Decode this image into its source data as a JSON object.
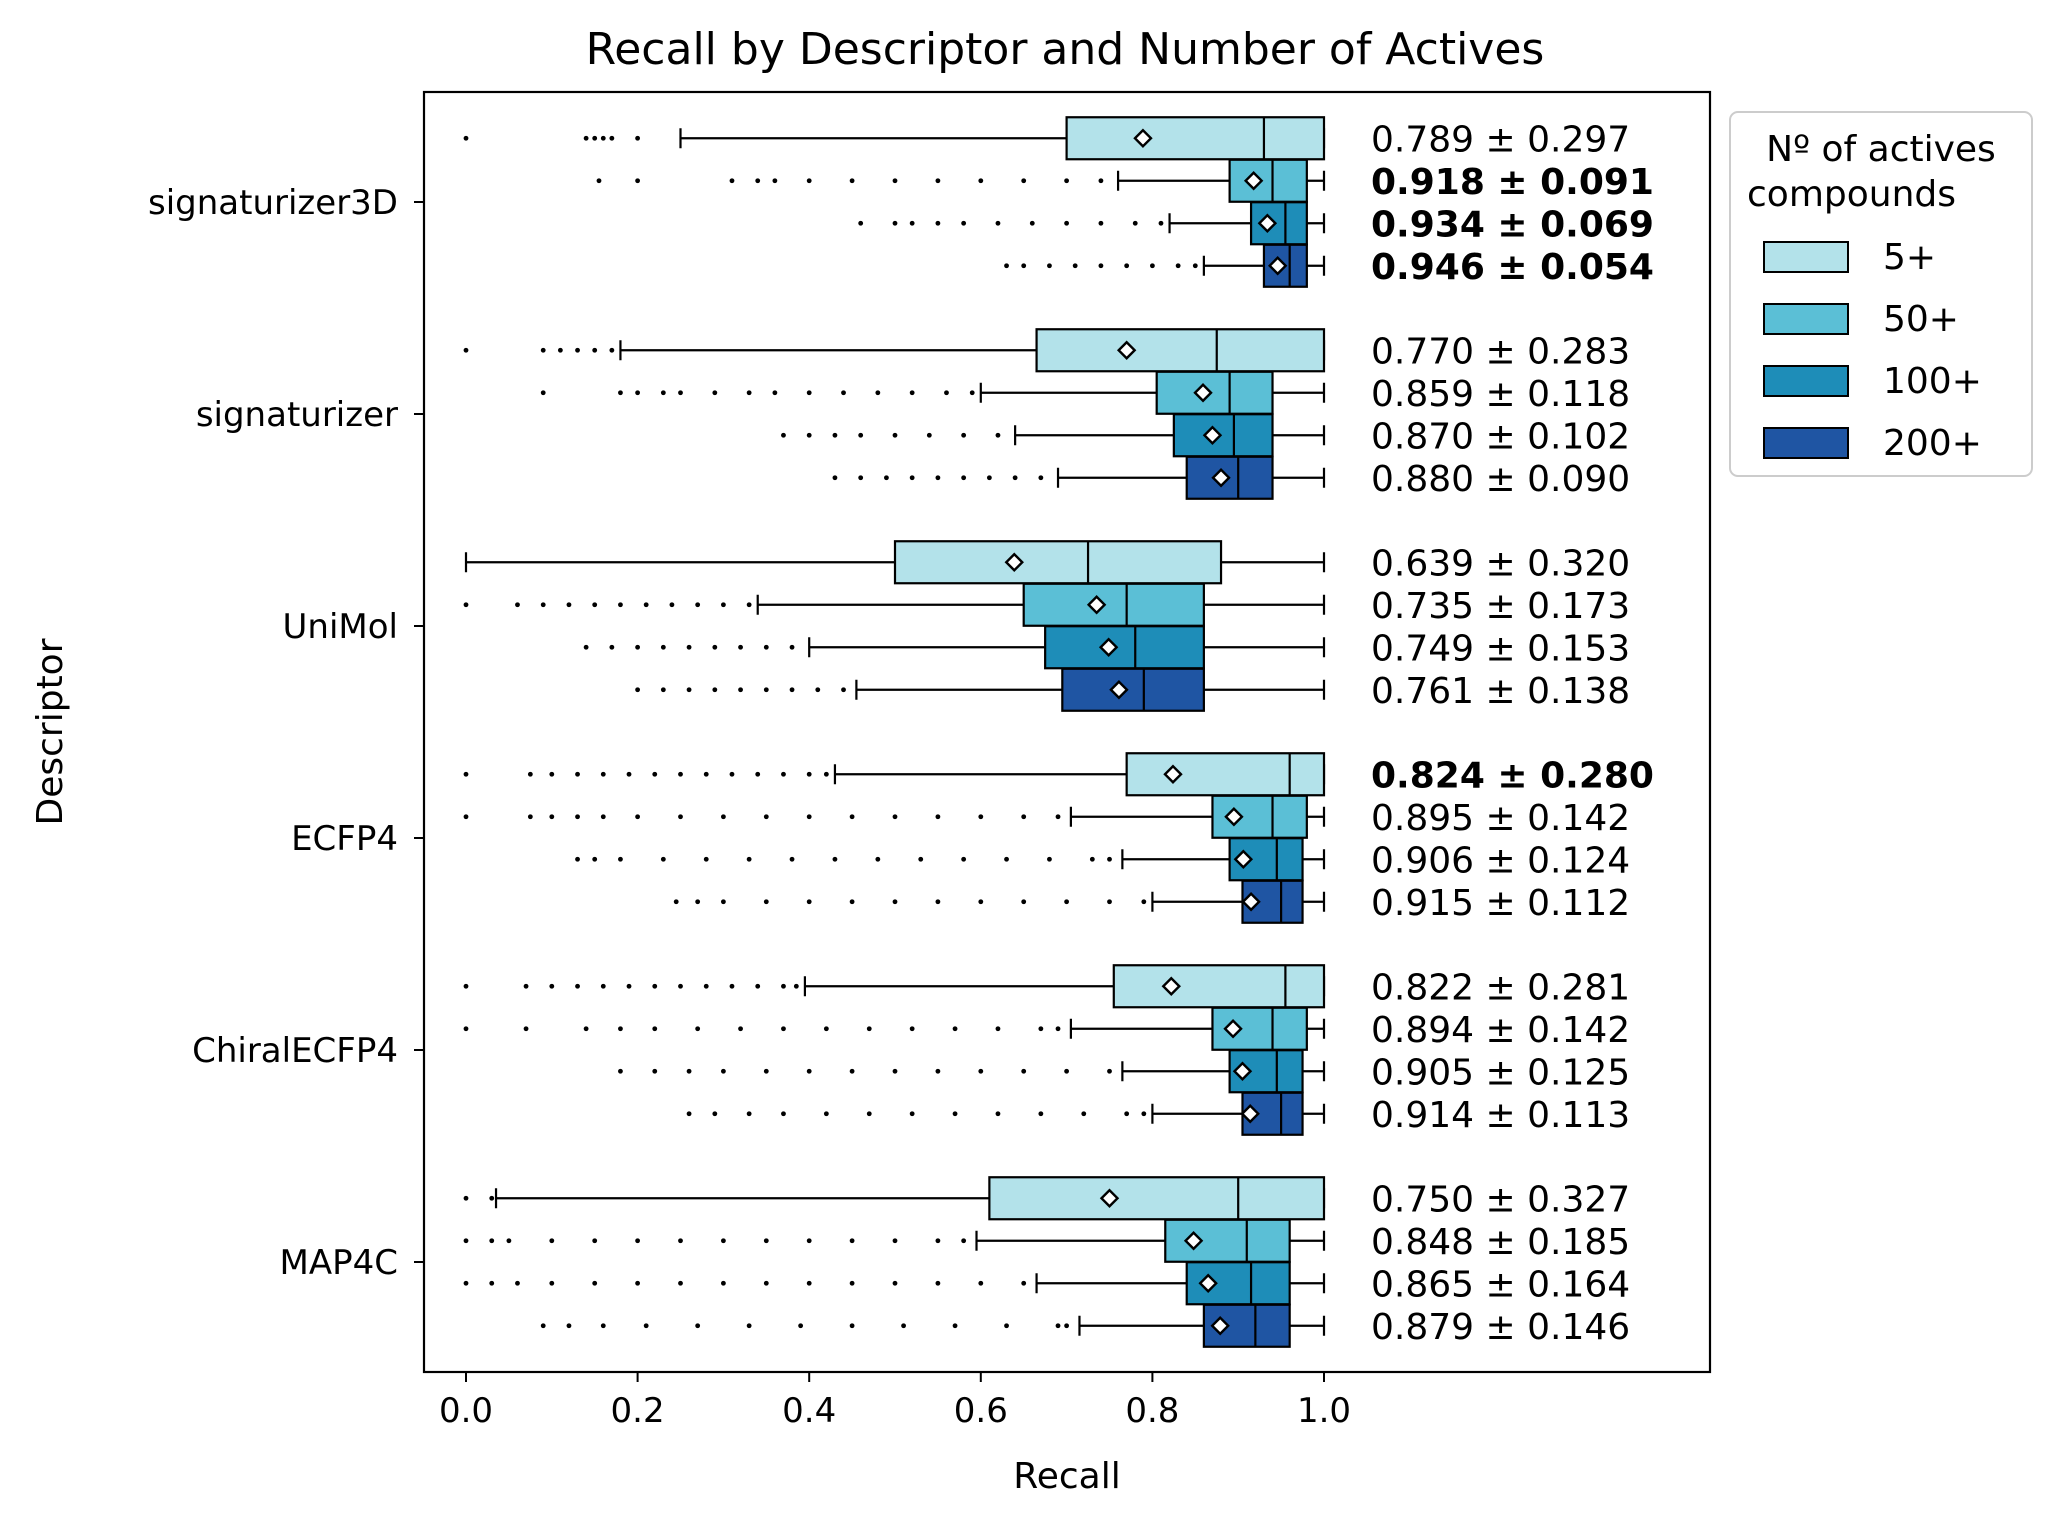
{
  "chart_data": {
    "type": "boxplot",
    "title": "Recall by Descriptor and Number of Actives",
    "xlabel": "Recall",
    "ylabel": "Descriptor",
    "xlim": [
      -0.05,
      1.45
    ],
    "xticks": [
      "0.0",
      "0.2",
      "0.4",
      "0.6",
      "0.8",
      "1.0"
    ],
    "xtick_values": [
      0.0,
      0.2,
      0.4,
      0.6,
      0.8,
      1.0
    ],
    "grid": false,
    "legend": {
      "title_lines": [
        "Nº of actives",
        "compounds"
      ],
      "placement": "outside-top-right",
      "entries": [
        "5+",
        "50+",
        "100+",
        "200+"
      ]
    },
    "hue_colors": [
      "#b3e2ea",
      "#5bbfd6",
      "#1e8db8",
      "#1f55a3"
    ],
    "categories": [
      "signaturizer3D",
      "signaturizer",
      "UniMol",
      "ECFP4",
      "ChiralECFP4",
      "MAP4C"
    ],
    "series": [
      {
        "descriptor": "signaturizer3D",
        "boxes": [
          {
            "hue": "5+",
            "whisker_low": 0.25,
            "q1": 0.7,
            "median": 0.93,
            "q3": 1.0,
            "whisker_high": 1.0,
            "mean": 0.789,
            "fliers": [
              0.0,
              0.14,
              0.15,
              0.16,
              0.17,
              0.2
            ],
            "annotation": "0.789 ± 0.297",
            "bold": false
          },
          {
            "hue": "50+",
            "whisker_low": 0.76,
            "q1": 0.89,
            "median": 0.94,
            "q3": 0.98,
            "whisker_high": 1.0,
            "mean": 0.918,
            "fliers": [
              0.155,
              0.2,
              0.31,
              0.34,
              0.36,
              0.4,
              0.45,
              0.5,
              0.55,
              0.6,
              0.65,
              0.7,
              0.74
            ],
            "annotation": "0.918 ± 0.091",
            "bold": true
          },
          {
            "hue": "100+",
            "whisker_low": 0.82,
            "q1": 0.915,
            "median": 0.955,
            "q3": 0.98,
            "whisker_high": 1.0,
            "mean": 0.934,
            "fliers": [
              0.46,
              0.5,
              0.52,
              0.55,
              0.58,
              0.62,
              0.66,
              0.7,
              0.74,
              0.78,
              0.81
            ],
            "annotation": "0.934 ± 0.069",
            "bold": true
          },
          {
            "hue": "200+",
            "whisker_low": 0.86,
            "q1": 0.93,
            "median": 0.96,
            "q3": 0.98,
            "whisker_high": 1.0,
            "mean": 0.946,
            "fliers": [
              0.63,
              0.65,
              0.68,
              0.71,
              0.74,
              0.77,
              0.8,
              0.83,
              0.85
            ],
            "annotation": "0.946 ± 0.054",
            "bold": true
          }
        ]
      },
      {
        "descriptor": "signaturizer",
        "boxes": [
          {
            "hue": "5+",
            "whisker_low": 0.18,
            "q1": 0.665,
            "median": 0.875,
            "q3": 1.0,
            "whisker_high": 1.0,
            "mean": 0.77,
            "fliers": [
              0.0,
              0.09,
              0.11,
              0.13,
              0.15,
              0.17
            ],
            "annotation": "0.770 ± 0.283",
            "bold": false
          },
          {
            "hue": "50+",
            "whisker_low": 0.6,
            "q1": 0.805,
            "median": 0.89,
            "q3": 0.94,
            "whisker_high": 1.0,
            "mean": 0.859,
            "fliers": [
              0.09,
              0.18,
              0.2,
              0.23,
              0.25,
              0.29,
              0.33,
              0.36,
              0.4,
              0.44,
              0.48,
              0.52,
              0.56,
              0.59
            ],
            "annotation": "0.859 ± 0.118",
            "bold": false
          },
          {
            "hue": "100+",
            "whisker_low": 0.64,
            "q1": 0.825,
            "median": 0.895,
            "q3": 0.94,
            "whisker_high": 1.0,
            "mean": 0.87,
            "fliers": [
              0.37,
              0.4,
              0.43,
              0.46,
              0.5,
              0.54,
              0.58,
              0.62
            ],
            "annotation": "0.870 ± 0.102",
            "bold": false
          },
          {
            "hue": "200+",
            "whisker_low": 0.69,
            "q1": 0.84,
            "median": 0.9,
            "q3": 0.94,
            "whisker_high": 1.0,
            "mean": 0.88,
            "fliers": [
              0.43,
              0.46,
              0.49,
              0.52,
              0.55,
              0.58,
              0.61,
              0.64,
              0.67
            ],
            "annotation": "0.880 ± 0.090",
            "bold": false
          }
        ]
      },
      {
        "descriptor": "UniMol",
        "boxes": [
          {
            "hue": "5+",
            "whisker_low": 0.0,
            "q1": 0.5,
            "median": 0.725,
            "q3": 0.88,
            "whisker_high": 1.0,
            "mean": 0.639,
            "fliers": [],
            "annotation": "0.639 ± 0.320",
            "bold": false
          },
          {
            "hue": "50+",
            "whisker_low": 0.34,
            "q1": 0.65,
            "median": 0.77,
            "q3": 0.86,
            "whisker_high": 1.0,
            "mean": 0.735,
            "fliers": [
              0.0,
              0.06,
              0.09,
              0.12,
              0.15,
              0.18,
              0.21,
              0.24,
              0.27,
              0.3,
              0.33
            ],
            "annotation": "0.735 ± 0.173",
            "bold": false
          },
          {
            "hue": "100+",
            "whisker_low": 0.4,
            "q1": 0.675,
            "median": 0.78,
            "q3": 0.86,
            "whisker_high": 1.0,
            "mean": 0.749,
            "fliers": [
              0.14,
              0.17,
              0.2,
              0.23,
              0.26,
              0.29,
              0.32,
              0.35,
              0.38
            ],
            "annotation": "0.749 ± 0.153",
            "bold": false
          },
          {
            "hue": "200+",
            "whisker_low": 0.455,
            "q1": 0.695,
            "median": 0.79,
            "q3": 0.86,
            "whisker_high": 1.0,
            "mean": 0.761,
            "fliers": [
              0.2,
              0.23,
              0.26,
              0.29,
              0.32,
              0.35,
              0.38,
              0.41,
              0.44
            ],
            "annotation": "0.761 ± 0.138",
            "bold": false
          }
        ]
      },
      {
        "descriptor": "ECFP4",
        "boxes": [
          {
            "hue": "5+",
            "whisker_low": 0.43,
            "q1": 0.77,
            "median": 0.96,
            "q3": 1.0,
            "whisker_high": 1.0,
            "mean": 0.824,
            "fliers": [
              0.0,
              0.075,
              0.1,
              0.13,
              0.16,
              0.19,
              0.22,
              0.25,
              0.28,
              0.31,
              0.34,
              0.37,
              0.4,
              0.42
            ],
            "annotation": "0.824 ± 0.280",
            "bold": true
          },
          {
            "hue": "50+",
            "whisker_low": 0.705,
            "q1": 0.87,
            "median": 0.94,
            "q3": 0.98,
            "whisker_high": 1.0,
            "mean": 0.895,
            "fliers": [
              0.0,
              0.075,
              0.1,
              0.13,
              0.16,
              0.2,
              0.25,
              0.3,
              0.35,
              0.4,
              0.45,
              0.5,
              0.55,
              0.6,
              0.65,
              0.69
            ],
            "annotation": "0.895 ± 0.142",
            "bold": false
          },
          {
            "hue": "100+",
            "whisker_low": 0.765,
            "q1": 0.89,
            "median": 0.945,
            "q3": 0.975,
            "whisker_high": 1.0,
            "mean": 0.906,
            "fliers": [
              0.13,
              0.15,
              0.18,
              0.23,
              0.28,
              0.33,
              0.38,
              0.43,
              0.48,
              0.53,
              0.58,
              0.63,
              0.68,
              0.73,
              0.75
            ],
            "annotation": "0.906 ± 0.124",
            "bold": false
          },
          {
            "hue": "200+",
            "whisker_low": 0.8,
            "q1": 0.905,
            "median": 0.95,
            "q3": 0.975,
            "whisker_high": 1.0,
            "mean": 0.915,
            "fliers": [
              0.245,
              0.27,
              0.3,
              0.35,
              0.4,
              0.45,
              0.5,
              0.55,
              0.6,
              0.65,
              0.7,
              0.75,
              0.79
            ],
            "annotation": "0.915 ± 0.112",
            "bold": false
          }
        ]
      },
      {
        "descriptor": "ChiralECFP4",
        "boxes": [
          {
            "hue": "5+",
            "whisker_low": 0.395,
            "q1": 0.755,
            "median": 0.955,
            "q3": 1.0,
            "whisker_high": 1.0,
            "mean": 0.822,
            "fliers": [
              0.0,
              0.07,
              0.1,
              0.13,
              0.16,
              0.19,
              0.22,
              0.25,
              0.28,
              0.31,
              0.34,
              0.37,
              0.385
            ],
            "annotation": "0.822 ± 0.281",
            "bold": false
          },
          {
            "hue": "50+",
            "whisker_low": 0.705,
            "q1": 0.87,
            "median": 0.94,
            "q3": 0.98,
            "whisker_high": 1.0,
            "mean": 0.894,
            "fliers": [
              0.0,
              0.07,
              0.14,
              0.18,
              0.22,
              0.27,
              0.32,
              0.37,
              0.42,
              0.47,
              0.52,
              0.57,
              0.62,
              0.67,
              0.69
            ],
            "annotation": "0.894 ± 0.142",
            "bold": false
          },
          {
            "hue": "100+",
            "whisker_low": 0.765,
            "q1": 0.89,
            "median": 0.945,
            "q3": 0.975,
            "whisker_high": 1.0,
            "mean": 0.905,
            "fliers": [
              0.18,
              0.22,
              0.26,
              0.3,
              0.35,
              0.4,
              0.45,
              0.5,
              0.55,
              0.6,
              0.65,
              0.7,
              0.75
            ],
            "annotation": "0.905 ± 0.125",
            "bold": false
          },
          {
            "hue": "200+",
            "whisker_low": 0.8,
            "q1": 0.905,
            "median": 0.95,
            "q3": 0.975,
            "whisker_high": 1.0,
            "mean": 0.914,
            "fliers": [
              0.26,
              0.29,
              0.33,
              0.37,
              0.42,
              0.47,
              0.52,
              0.57,
              0.62,
              0.67,
              0.72,
              0.77,
              0.79
            ],
            "annotation": "0.914 ± 0.113",
            "bold": false
          }
        ]
      },
      {
        "descriptor": "MAP4C",
        "boxes": [
          {
            "hue": "5+",
            "whisker_low": 0.035,
            "q1": 0.61,
            "median": 0.9,
            "q3": 1.0,
            "whisker_high": 1.0,
            "mean": 0.75,
            "fliers": [
              0.0,
              0.03
            ],
            "annotation": "0.750 ± 0.327",
            "bold": false
          },
          {
            "hue": "50+",
            "whisker_low": 0.595,
            "q1": 0.815,
            "median": 0.91,
            "q3": 0.96,
            "whisker_high": 1.0,
            "mean": 0.848,
            "fliers": [
              0.0,
              0.03,
              0.05,
              0.1,
              0.15,
              0.2,
              0.25,
              0.3,
              0.35,
              0.4,
              0.45,
              0.5,
              0.55,
              0.58
            ],
            "annotation": "0.848 ± 0.185",
            "bold": false
          },
          {
            "hue": "100+",
            "whisker_low": 0.665,
            "q1": 0.84,
            "median": 0.915,
            "q3": 0.96,
            "whisker_high": 1.0,
            "mean": 0.865,
            "fliers": [
              0.0,
              0.03,
              0.06,
              0.1,
              0.15,
              0.2,
              0.25,
              0.3,
              0.35,
              0.4,
              0.45,
              0.5,
              0.55,
              0.6,
              0.65
            ],
            "annotation": "0.865 ± 0.164",
            "bold": false
          },
          {
            "hue": "200+",
            "whisker_low": 0.715,
            "q1": 0.86,
            "median": 0.92,
            "q3": 0.96,
            "whisker_high": 1.0,
            "mean": 0.879,
            "fliers": [
              0.09,
              0.12,
              0.16,
              0.21,
              0.27,
              0.33,
              0.39,
              0.45,
              0.51,
              0.57,
              0.63,
              0.69,
              0.7
            ],
            "annotation": "0.879 ± 0.146",
            "bold": false
          }
        ]
      }
    ]
  }
}
